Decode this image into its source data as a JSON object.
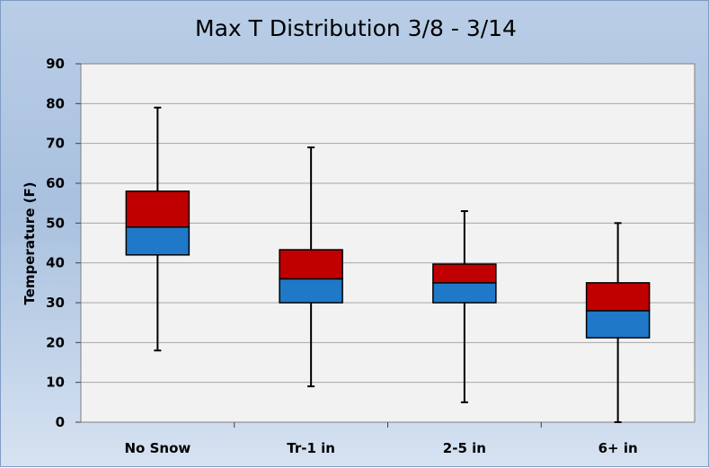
{
  "chart_data": {
    "type": "boxplot",
    "title": "Max T Distribution  3/8 - 3/14",
    "xlabel": "",
    "ylabel": "Temperature (F)",
    "ylim": [
      0,
      90
    ],
    "yticks": [
      0,
      10,
      20,
      30,
      40,
      50,
      60,
      70,
      80,
      90
    ],
    "grid": true,
    "legend": "none",
    "categories": [
      "No Snow",
      "Tr-1 in",
      "2-5 in",
      "6+ in"
    ],
    "boxes": [
      {
        "min": 18,
        "q1": 42,
        "median": 49,
        "q3": 58,
        "max": 79
      },
      {
        "min": 9,
        "q1": 30,
        "median": 36,
        "q3": 43.3,
        "max": 69
      },
      {
        "min": 5,
        "q1": 30,
        "median": 35,
        "q3": 39.7,
        "max": 53
      },
      {
        "min": 0,
        "q1": 21.2,
        "median": 28,
        "q3": 35,
        "max": 50
      }
    ],
    "colors": {
      "upper_box": "#c00000",
      "lower_box": "#1f78c8",
      "plot_background": "#f2f2f2",
      "grid": "#a6a6a6"
    }
  }
}
